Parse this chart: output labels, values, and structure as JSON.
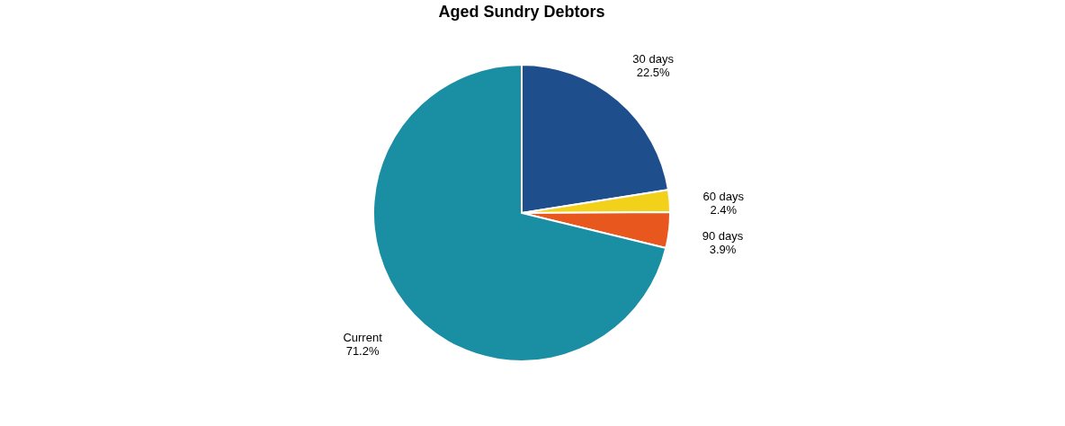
{
  "chart_data": {
    "type": "pie",
    "title": "Aged Sundry Debtors",
    "categories": [
      "30 days",
      "60 days",
      "90 days",
      "Current"
    ],
    "values": [
      22.5,
      2.4,
      3.9,
      71.2
    ],
    "value_labels": [
      "22.5%",
      "2.4%",
      "3.9%",
      "71.2%"
    ],
    "colors": [
      "#1f4e8c",
      "#f2d11a",
      "#e8581e",
      "#1a8ea3"
    ],
    "legend": false
  }
}
